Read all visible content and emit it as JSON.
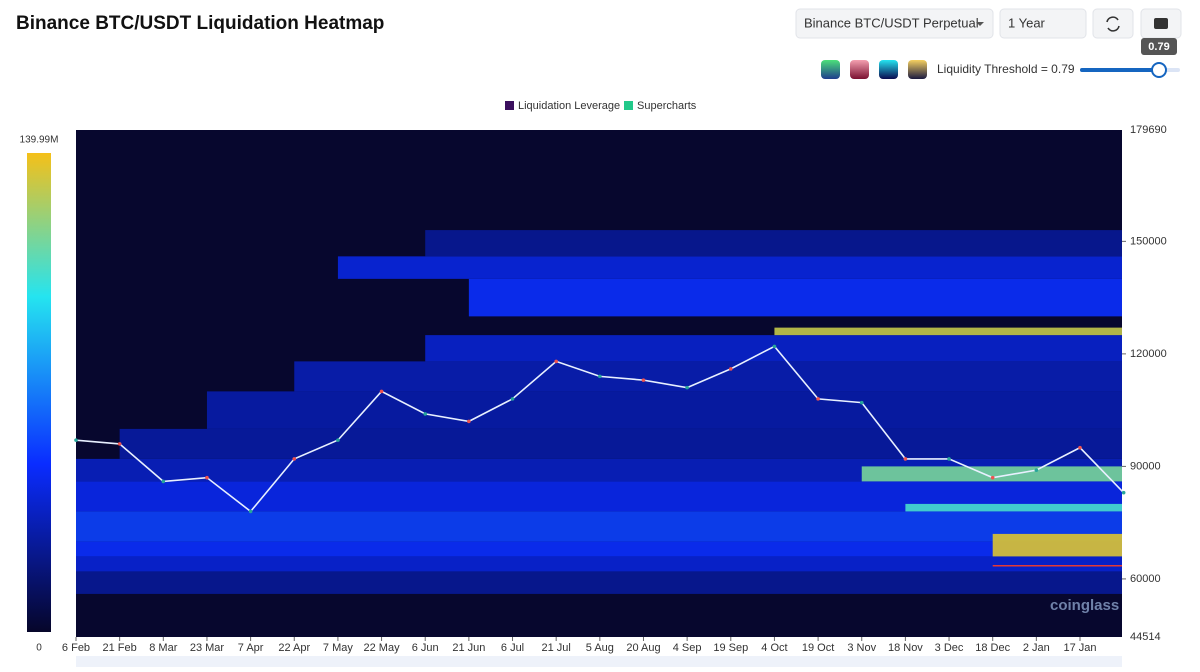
{
  "header": {
    "title": "Binance BTC/USDT Liquidation Heatmap",
    "pair_select": "Binance BTC/USDT Perpetual",
    "range_select": "1 Year",
    "threshold_label": "Liquidity Threshold = 0.79",
    "threshold": 0.79,
    "watermark": "coinglass"
  },
  "chart_data": {
    "type": "heatmap",
    "series": [
      {
        "name": "Liquidation Leverage",
        "color": "#3b0f5e"
      },
      {
        "name": "Supercharts",
        "color": "#22c98a"
      }
    ],
    "categories": [
      "6 Feb",
      "21 Feb",
      "8 Mar",
      "23 Mar",
      "7 Apr",
      "22 Apr",
      "7 May",
      "22 May",
      "6 Jun",
      "21 Jun",
      "6 Jul",
      "21 Jul",
      "5 Aug",
      "20 Aug",
      "4 Sep",
      "19 Sep",
      "4 Oct",
      "19 Oct",
      "3 Nov",
      "18 Nov",
      "3 Dec",
      "18 Dec",
      "2 Jan",
      "17 Jan",
      null
    ],
    "price": {
      "name": "BTC",
      "color": "#e8f0ff",
      "values": [
        97000,
        96000,
        86000,
        87000,
        78000,
        92000,
        97000,
        110000,
        104000,
        102000,
        108000,
        118000,
        114000,
        113000,
        111000,
        116000,
        122000,
        108000,
        107000,
        92000,
        92000,
        87000,
        89000,
        95000,
        83000
      ]
    },
    "bands": [
      {
        "low": 56000,
        "high": 62000,
        "from": 0,
        "value": 25000000
      },
      {
        "low": 62000,
        "high": 66000,
        "from": 0,
        "value": 40000000
      },
      {
        "low": 66000,
        "high": 70000,
        "from": 0,
        "value": 50000000
      },
      {
        "low": 70000,
        "high": 78000,
        "from": 0,
        "value": 55000000
      },
      {
        "low": 78000,
        "high": 86000,
        "from": 0,
        "value": 45000000
      },
      {
        "low": 86000,
        "high": 92000,
        "from": 0,
        "value": 35000000
      },
      {
        "low": 92000,
        "high": 100000,
        "from": 1,
        "value": 28000000
      },
      {
        "low": 100000,
        "high": 110000,
        "from": 3,
        "value": 30000000
      },
      {
        "low": 110000,
        "high": 118000,
        "from": 5,
        "value": 32000000
      },
      {
        "low": 118000,
        "high": 125000,
        "from": 8,
        "value": 38000000
      },
      {
        "low": 130000,
        "high": 140000,
        "from": 9,
        "value": 50000000
      },
      {
        "low": 140000,
        "high": 146000,
        "from": 6,
        "value": 42000000
      },
      {
        "low": 146000,
        "high": 153000,
        "from": 8,
        "value": 25000000
      },
      {
        "low": 125000,
        "high": 127000,
        "from": 16,
        "value": 130000000
      },
      {
        "low": 86000,
        "high": 90000,
        "from": 18,
        "value": 115000000
      },
      {
        "low": 78000,
        "high": 80000,
        "from": 19,
        "value": 105000000
      },
      {
        "low": 66000,
        "high": 72000,
        "from": 21,
        "value": 135000000
      }
    ],
    "support": {
      "value": 63500,
      "from": 21,
      "color": "#e53935"
    },
    "ylim": [
      44514,
      179690
    ],
    "yticks": [
      60000,
      90000,
      120000,
      150000
    ],
    "colorbar": {
      "lim": [
        0,
        {
          "value": 139990000,
          "label": "139.99M"
        }
      ]
    }
  }
}
